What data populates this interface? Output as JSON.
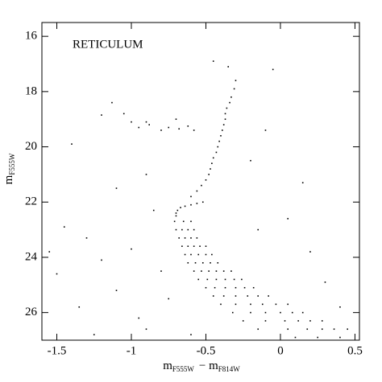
{
  "chart_data": {
    "type": "scatter",
    "title": "RETICULUM",
    "xlabel": {
      "m1": "m",
      "sub1": "F555W",
      "sep": "− m",
      "sub2": "F814W"
    },
    "ylabel": {
      "m": "m",
      "sub": "F555W"
    },
    "color": "#000000",
    "xlim": [
      -1.6,
      0.53
    ],
    "ylim": [
      15.5,
      27
    ],
    "y_inverted": true,
    "xticks": [
      -1.5,
      -1,
      -0.5,
      0,
      0.5
    ],
    "yticks": [
      16,
      18,
      20,
      22,
      24,
      26
    ],
    "x": [
      -0.3,
      -0.31,
      -0.33,
      -0.34,
      -0.36,
      -0.37,
      -0.37,
      -0.38,
      -0.39,
      -0.4,
      -0.41,
      -0.42,
      -0.43,
      -0.45,
      -0.46,
      -0.47,
      -0.48,
      -0.5,
      -0.53,
      -0.56,
      -0.6,
      -0.52,
      -0.56,
      -0.6,
      -0.64,
      -0.67,
      -0.69,
      -0.7,
      -0.7,
      -0.71,
      -0.65,
      -0.6,
      -0.7,
      -0.66,
      -0.62,
      -0.58,
      -0.68,
      -0.64,
      -0.6,
      -0.56,
      -0.66,
      -0.62,
      -0.58,
      -0.54,
      -0.5,
      -0.64,
      -0.6,
      -0.55,
      -0.5,
      -0.46,
      -0.62,
      -0.57,
      -0.52,
      -0.47,
      -0.42,
      -0.58,
      -0.53,
      -0.48,
      -0.43,
      -0.38,
      -0.33,
      -0.55,
      -0.49,
      -0.43,
      -0.37,
      -0.31,
      -0.26,
      -0.5,
      -0.44,
      -0.37,
      -0.3,
      -0.24,
      -0.18,
      -0.45,
      -0.38,
      -0.3,
      -0.22,
      -0.15,
      -0.08,
      -0.4,
      -0.3,
      -0.2,
      -0.12,
      -0.03,
      0.05,
      -0.32,
      -0.2,
      -0.1,
      0.0,
      0.08,
      0.15,
      -0.25,
      -0.1,
      0.03,
      0.12,
      0.2,
      0.28,
      -0.15,
      0.05,
      0.18,
      0.28,
      0.36,
      0.45,
      0.1,
      0.25,
      0.4,
      -1.0,
      -0.95,
      -0.88,
      -0.8,
      -0.75,
      -0.7,
      -0.68,
      -0.62,
      -0.58,
      -0.9,
      -1.05,
      -1.2,
      -1.45,
      -1.3,
      -1.2,
      -1.1,
      -1.0,
      -0.95,
      -1.35,
      -1.5,
      -0.85,
      -1.1,
      -0.9,
      -1.4,
      -1.13,
      -0.2,
      0.05,
      0.2,
      0.3,
      -0.1,
      -0.45,
      -0.35,
      -0.05,
      -0.8,
      -0.75,
      -0.9,
      -1.25,
      0.15,
      -0.15,
      0.4,
      -1.55,
      -0.6
    ],
    "values": [
      17.6,
      17.9,
      18.2,
      18.4,
      18.6,
      18.8,
      19.0,
      19.2,
      19.4,
      19.6,
      19.8,
      20.0,
      20.2,
      20.4,
      20.6,
      20.8,
      21.0,
      21.2,
      21.4,
      21.6,
      21.8,
      22.0,
      22.05,
      22.1,
      22.15,
      22.2,
      22.3,
      22.4,
      22.5,
      22.7,
      22.7,
      22.7,
      23.0,
      23.0,
      23.0,
      23.0,
      23.3,
      23.3,
      23.3,
      23.3,
      23.6,
      23.6,
      23.6,
      23.6,
      23.6,
      23.9,
      23.9,
      23.9,
      23.9,
      23.9,
      24.2,
      24.2,
      24.2,
      24.2,
      24.2,
      24.5,
      24.5,
      24.5,
      24.5,
      24.5,
      24.5,
      24.8,
      24.8,
      24.8,
      24.8,
      24.8,
      24.8,
      25.1,
      25.1,
      25.1,
      25.1,
      25.1,
      25.1,
      25.4,
      25.4,
      25.4,
      25.4,
      25.4,
      25.4,
      25.7,
      25.7,
      25.7,
      25.7,
      25.7,
      25.7,
      26.0,
      26.0,
      26.0,
      26.0,
      26.0,
      26.0,
      26.3,
      26.3,
      26.3,
      26.3,
      26.3,
      26.3,
      26.6,
      26.6,
      26.6,
      26.6,
      26.6,
      26.6,
      26.9,
      26.9,
      26.9,
      19.1,
      19.3,
      19.2,
      19.4,
      19.3,
      19.0,
      19.35,
      19.25,
      19.4,
      19.1,
      18.8,
      18.85,
      22.9,
      23.3,
      24.1,
      25.2,
      23.7,
      26.2,
      25.8,
      24.6,
      22.3,
      21.5,
      21.0,
      19.9,
      18.4,
      20.5,
      22.6,
      23.8,
      24.9,
      19.4,
      16.9,
      17.1,
      17.2,
      24.5,
      25.5,
      26.6,
      26.8,
      21.3,
      23.0,
      25.8,
      23.8,
      26.8
    ]
  }
}
